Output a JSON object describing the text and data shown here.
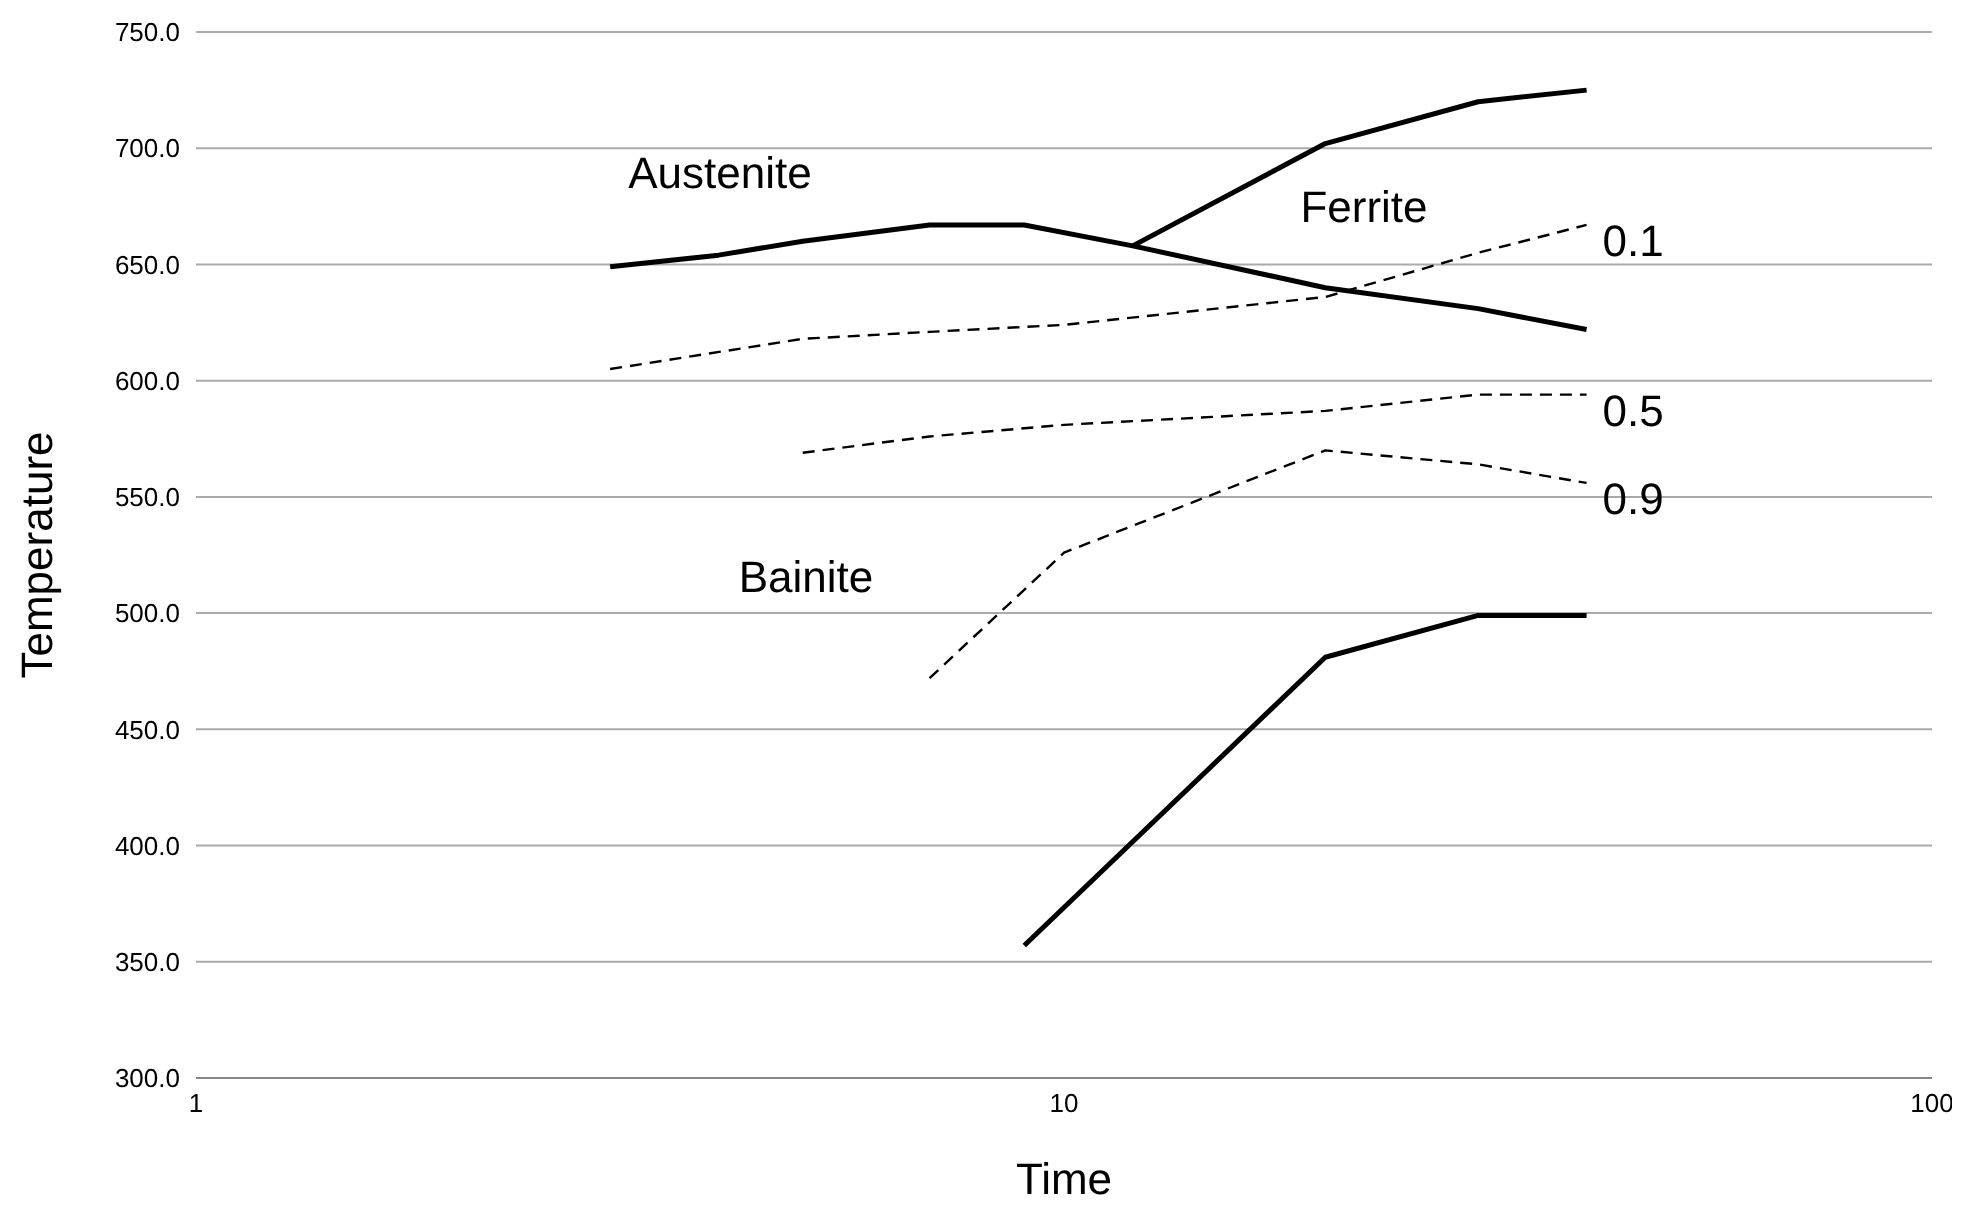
{
  "chart_data": {
    "type": "line",
    "xlabel": "Time",
    "ylabel": "Temperature",
    "log": "x",
    "xlim": [
      1,
      100
    ],
    "xticks": [
      1,
      10,
      100
    ],
    "ylim": [
      300,
      750
    ],
    "yticks": [
      {
        "value": 300,
        "label": "300.0"
      },
      {
        "value": 350,
        "label": "350.0"
      },
      {
        "value": 400,
        "label": "400.0"
      },
      {
        "value": 450,
        "label": "450.0"
      },
      {
        "value": 500,
        "label": "500.0"
      },
      {
        "value": 550,
        "label": "550.0"
      },
      {
        "value": 600,
        "label": "600.0"
      },
      {
        "value": 650,
        "label": "650.0"
      },
      {
        "value": 700,
        "label": "700.0"
      },
      {
        "value": 750,
        "label": "750.0"
      }
    ],
    "grid": "y",
    "marker": "none",
    "series": [
      {
        "color": "#000000",
        "line_style": "solid",
        "x": [
          3,
          4,
          5,
          7,
          9,
          12,
          20,
          30,
          40
        ],
        "values": [
          649,
          654,
          660,
          667,
          667,
          658,
          640,
          631,
          622
        ]
      },
      {
        "color": "#000000",
        "line_style": "solid",
        "x": [
          12,
          20,
          30,
          40
        ],
        "values": [
          658,
          702,
          720,
          725
        ]
      },
      {
        "name": "0.1",
        "color": "#000000",
        "line_style": "dashed",
        "x": [
          3,
          5,
          7,
          10,
          20,
          30,
          40
        ],
        "values": [
          605,
          618,
          621,
          624,
          636,
          655,
          667
        ]
      },
      {
        "name": "0.5",
        "color": "#000000",
        "line_style": "dashed",
        "x": [
          5,
          7,
          10,
          20,
          30,
          40
        ],
        "values": [
          569,
          576,
          581,
          587,
          594,
          594
        ]
      },
      {
        "name": "0.9",
        "color": "#000000",
        "line_style": "dashed",
        "x": [
          7,
          10,
          20,
          30,
          40
        ],
        "values": [
          472,
          526,
          570,
          564,
          556
        ]
      },
      {
        "color": "#000000",
        "line_style": "solid",
        "x": [
          9,
          20,
          30,
          40
        ],
        "values": [
          357,
          481,
          499,
          499
        ]
      }
    ],
    "annotations": [
      "Austenite",
      "Ferrite",
      "Bainite"
    ]
  }
}
